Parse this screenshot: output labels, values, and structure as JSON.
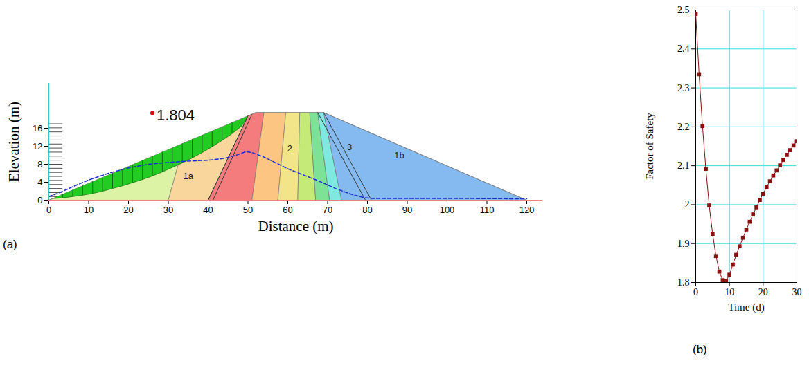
{
  "chart_data": [
    {
      "type": "section",
      "panel_label": "(a)",
      "x_label": "Distance (m)",
      "y_label": "Elevation (m)",
      "xlim": [
        0,
        124
      ],
      "xticks": [
        0,
        10,
        20,
        30,
        40,
        50,
        60,
        70,
        80,
        90,
        100,
        110,
        120
      ],
      "ylim": [
        0,
        26
      ],
      "yticks": [
        0,
        4,
        8,
        12,
        16
      ],
      "dam_outline": [
        [
          0,
          0
        ],
        [
          52,
          19.5
        ],
        [
          69,
          19.5
        ],
        [
          120,
          0
        ]
      ],
      "zones": [
        {
          "color": "#dcf3a6",
          "polygon": [
            [
              0,
              0
            ],
            [
              30,
              0
            ],
            [
              34,
              12.75
            ]
          ]
        },
        {
          "color": "#f9d79c",
          "polygon": [
            [
              30,
              0
            ],
            [
              40,
              0
            ],
            [
              50,
              18.75
            ],
            [
              34,
              12.75
            ]
          ]
        },
        {
          "color": "#f47c7c",
          "polygon": [
            [
              40,
              0
            ],
            [
              51,
              0
            ],
            [
              54,
              19.5
            ],
            [
              52,
              19.5
            ],
            [
              50,
              18.75
            ]
          ]
        },
        {
          "color": "#fdc582",
          "polygon": [
            [
              51,
              0
            ],
            [
              57.5,
              0
            ],
            [
              59.5,
              19.5
            ],
            [
              54,
              19.5
            ]
          ]
        },
        {
          "color": "#f2e488",
          "polygon": [
            [
              57.5,
              0
            ],
            [
              62.5,
              0
            ],
            [
              63,
              19.5
            ],
            [
              59.5,
              19.5
            ]
          ]
        },
        {
          "color": "#c6ea78",
          "polygon": [
            [
              62.5,
              0
            ],
            [
              67,
              0
            ],
            [
              65.5,
              19.5
            ],
            [
              63,
              19.5
            ]
          ]
        },
        {
          "color": "#7de296",
          "polygon": [
            [
              67,
              0
            ],
            [
              70.5,
              0
            ],
            [
              67.5,
              19.5
            ],
            [
              65.5,
              19.5
            ]
          ]
        },
        {
          "color": "#7fe9e0",
          "polygon": [
            [
              70.5,
              0
            ],
            [
              73.5,
              0
            ],
            [
              69,
              19.5
            ],
            [
              67.5,
              19.5
            ]
          ]
        },
        {
          "color": "#84baf0",
          "polygon": [
            [
              73.5,
              0
            ],
            [
              120,
              0
            ],
            [
              69,
              19.5
            ]
          ]
        }
      ],
      "zone_labels": [
        {
          "label": "1a",
          "x": 35,
          "y": 5.3
        },
        {
          "label": "2",
          "x": 60.5,
          "y": 11.5
        },
        {
          "label": "3",
          "x": 75.5,
          "y": 11.8
        },
        {
          "label": "1b",
          "x": 88,
          "y": 10
        }
      ],
      "filters": [
        [
          [
            40,
            0
          ],
          [
            50,
            18.75
          ]
        ],
        [
          [
            41.2,
            0
          ],
          [
            51,
            19.1
          ]
        ],
        [
          [
            67.5,
            19.5
          ],
          [
            79.5,
            0
          ]
        ],
        [
          [
            69,
            19.5
          ],
          [
            81,
            0
          ]
        ]
      ],
      "reservoir": {
        "level": 17,
        "x": [
          0,
          3.5
        ]
      },
      "slip_surface": {
        "color": "#22cc22",
        "points": [
          [
            1,
            0.375
          ],
          [
            3.5,
            0.5
          ],
          [
            6,
            0.8
          ],
          [
            8.5,
            1.1
          ],
          [
            11,
            1.5
          ],
          [
            13.5,
            2.0
          ],
          [
            16,
            2.6
          ],
          [
            18.5,
            3.2
          ],
          [
            21,
            3.9
          ],
          [
            23.5,
            4.6
          ],
          [
            26,
            5.4
          ],
          [
            28.5,
            6.3
          ],
          [
            31,
            7.3
          ],
          [
            33.5,
            8.3
          ],
          [
            36,
            9.4
          ],
          [
            38.5,
            10.6
          ],
          [
            41,
            11.9
          ],
          [
            43.5,
            13.3
          ],
          [
            46,
            14.8
          ],
          [
            48.5,
            16.6
          ],
          [
            50,
            18.75
          ]
        ]
      },
      "phreatic_line": {
        "color": "#1f2fd0",
        "line_style": "dashed",
        "points": [
          [
            0,
            0.8
          ],
          [
            3,
            1.8
          ],
          [
            6,
            3
          ],
          [
            10,
            4.5
          ],
          [
            15,
            6
          ],
          [
            20,
            7.2
          ],
          [
            25,
            8
          ],
          [
            30,
            8.4
          ],
          [
            35,
            8.7
          ],
          [
            40,
            8.9
          ],
          [
            44,
            9.3
          ],
          [
            47,
            10
          ],
          [
            49.5,
            10.8
          ],
          [
            51,
            10.6
          ],
          [
            54,
            9.6
          ],
          [
            57,
            8.3
          ],
          [
            60,
            7
          ],
          [
            64,
            5.6
          ],
          [
            68,
            4.2
          ],
          [
            72,
            2.6
          ],
          [
            76,
            1.3
          ],
          [
            79,
            0.6
          ],
          [
            81,
            0.4
          ],
          [
            100,
            0.4
          ],
          [
            120,
            0.3
          ]
        ]
      },
      "critical_center": {
        "x": 26,
        "y": 19.4,
        "label": "1.804",
        "color": "#e00000"
      }
    },
    {
      "type": "line",
      "panel_label": "(b)",
      "x_label": "Time (d)",
      "y_label": "Factor of Safety",
      "x": [
        0,
        1,
        2,
        3,
        4,
        5,
        6,
        7,
        8,
        9,
        10,
        11,
        12,
        13,
        14,
        15,
        16,
        17,
        18,
        19,
        20,
        21,
        22,
        23,
        24,
        25,
        26,
        27,
        28,
        29,
        30
      ],
      "values": [
        2.49,
        2.335,
        2.202,
        2.092,
        1.998,
        1.925,
        1.868,
        1.828,
        1.806,
        1.804,
        1.82,
        1.846,
        1.871,
        1.893,
        1.915,
        1.936,
        1.956,
        1.975,
        1.993,
        2.012,
        2.028,
        2.045,
        2.06,
        2.075,
        2.088,
        2.101,
        2.115,
        2.128,
        2.14,
        2.152,
        2.163
      ],
      "color": "#8b1010",
      "marker": "square",
      "xlim": [
        0,
        30
      ],
      "xticks": [
        0,
        10,
        20,
        30
      ],
      "ylim": [
        1.8,
        2.5
      ],
      "yticks": [
        1.8,
        1.9,
        2,
        2.1,
        2.2,
        2.3,
        2.4,
        2.5
      ],
      "grid": true
    }
  ]
}
